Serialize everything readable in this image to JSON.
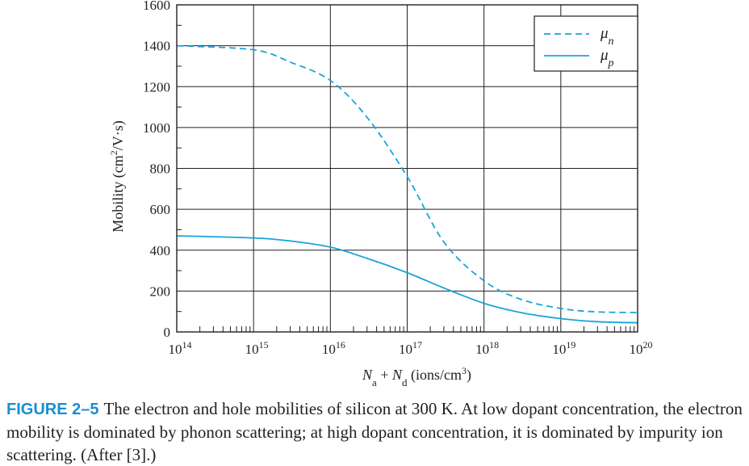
{
  "figure": {
    "label": "FIGURE 2–5",
    "caption": "The electron and hole mobilities of silicon at 300 K. At low dopant concentration, the electron mobility is dominated by phonon scattering; at high dopant concentration, it is dominated by impurity ion scattering. (After [3].)"
  },
  "chart_data": {
    "type": "line",
    "title": "",
    "xscale": "log",
    "xlim": [
      100000000000000.0,
      1e+20
    ],
    "ylim": [
      0,
      1600
    ],
    "grid": true,
    "legend_position": "top-right",
    "xlabel": {
      "symbol_a": "N",
      "sub_a": "a",
      "plus": " + ",
      "symbol_d": "N",
      "sub_d": "d",
      "units_pre": " (ions/cm",
      "units_sup": "3",
      "units_post": ")"
    },
    "ylabel": {
      "pre": "Mobility (cm",
      "sup": "2",
      "post": "/V·s)"
    },
    "x_ticks": [
      {
        "value": 100000000000000.0,
        "base": "10",
        "exp": "14"
      },
      {
        "value": 1000000000000000.0,
        "base": "10",
        "exp": "15"
      },
      {
        "value": 1e+16,
        "base": "10",
        "exp": "16"
      },
      {
        "value": 1e+17,
        "base": "10",
        "exp": "17"
      },
      {
        "value": 1e+18,
        "base": "10",
        "exp": "18"
      },
      {
        "value": 1e+19,
        "base": "10",
        "exp": "19"
      },
      {
        "value": 1e+20,
        "base": "10",
        "exp": "20"
      }
    ],
    "y_ticks": [
      0,
      200,
      400,
      600,
      800,
      1000,
      1200,
      1400,
      1600
    ],
    "series": [
      {
        "name": "μn",
        "name_main": "μ",
        "name_sub": "n",
        "style": "dashed",
        "color": "#1aa3dc",
        "x": [
          100000000000000.0,
          1000000000000000.0,
          3000000000000000.0,
          1e+16,
          3e+16,
          1e+17,
          3e+17,
          1e+18,
          3e+18,
          1e+19,
          3e+19,
          1e+20
        ],
        "y": [
          1400,
          1380,
          1320,
          1230,
          1050,
          760,
          440,
          250,
          160,
          115,
          98,
          95
        ]
      },
      {
        "name": "μp",
        "name_main": "μ",
        "name_sub": "p",
        "style": "solid",
        "color": "#1aa3dc",
        "x": [
          100000000000000.0,
          1000000000000000.0,
          3000000000000000.0,
          1e+16,
          3e+16,
          1e+17,
          3e+17,
          1e+18,
          3e+18,
          1e+19,
          3e+19,
          1e+20
        ],
        "y": [
          470,
          460,
          445,
          415,
          360,
          290,
          215,
          140,
          95,
          65,
          50,
          45
        ]
      }
    ]
  }
}
